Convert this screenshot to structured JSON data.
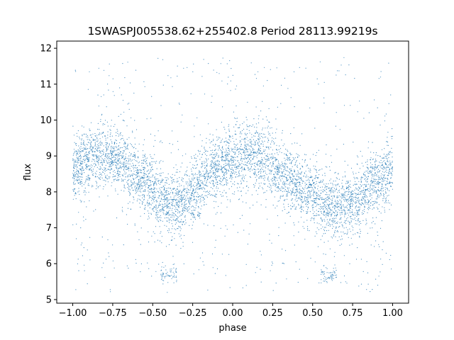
{
  "chart_data": {
    "type": "scatter",
    "title": "1SWASPJ005538.62+255402.8 Period 28113.99219s",
    "xlabel": "phase",
    "ylabel": "flux",
    "xlim": [
      -1.1,
      1.1
    ],
    "ylim": [
      4.9,
      12.2
    ],
    "grid": false,
    "legend": "none",
    "marker_color": "#1f77b4",
    "x_ticks": [
      {
        "value": -1.0,
        "label": "−1.00"
      },
      {
        "value": -0.75,
        "label": "−0.75"
      },
      {
        "value": -0.5,
        "label": "−0.50"
      },
      {
        "value": -0.25,
        "label": "−0.25"
      },
      {
        "value": 0.0,
        "label": "0.00"
      },
      {
        "value": 0.25,
        "label": "0.25"
      },
      {
        "value": 0.5,
        "label": "0.50"
      },
      {
        "value": 0.75,
        "label": "0.75"
      },
      {
        "value": 1.0,
        "label": "1.00"
      }
    ],
    "y_ticks": [
      {
        "value": 5,
        "label": "5"
      },
      {
        "value": 6,
        "label": "6"
      },
      {
        "value": 7,
        "label": "7"
      },
      {
        "value": 8,
        "label": "8"
      },
      {
        "value": 9,
        "label": "9"
      },
      {
        "value": 10,
        "label": "10"
      },
      {
        "value": 11,
        "label": "11"
      },
      {
        "value": 12,
        "label": "12"
      }
    ],
    "series": [
      {
        "x": [
          -1.0,
          -0.9,
          -0.8,
          -0.7,
          -0.6,
          -0.5,
          -0.4,
          -0.35,
          -0.3,
          -0.2,
          -0.1,
          0.0,
          0.1,
          0.2,
          0.3,
          0.4,
          0.5,
          0.6,
          0.65,
          0.7,
          0.8,
          0.9,
          1.0
        ],
        "y": [
          8.6,
          8.9,
          9.0,
          8.9,
          8.5,
          8.0,
          7.6,
          7.6,
          7.7,
          8.2,
          8.7,
          8.9,
          9.0,
          8.9,
          8.6,
          8.2,
          7.9,
          7.6,
          7.55,
          7.6,
          7.9,
          8.3,
          8.6
        ],
        "scatter_band": 0.45,
        "sparse_outliers_range": [
          5.2,
          11.8
        ],
        "dips_near_phase": [
          -0.4,
          0.6
        ],
        "dip_flux": 5.7
      }
    ]
  }
}
